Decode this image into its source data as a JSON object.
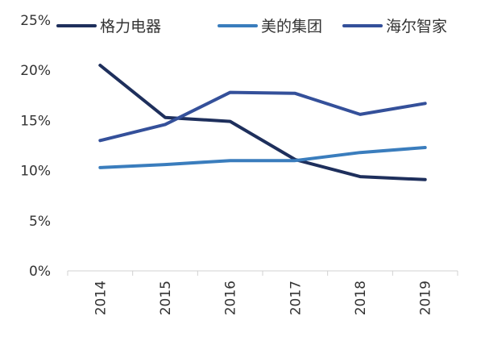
{
  "chart_data": {
    "type": "line",
    "categories": [
      "2014",
      "2015",
      "2016",
      "2017",
      "2018",
      "2019"
    ],
    "ylim": [
      0,
      25
    ],
    "yticks": [
      "0%",
      "5%",
      "10%",
      "15%",
      "20%",
      "25%"
    ],
    "ytick_values": [
      0,
      5,
      10,
      15,
      20,
      25
    ],
    "grid": false,
    "legend_position": "top",
    "series": [
      {
        "name": "格力电器",
        "color": "#1e2f5c",
        "values": [
          20.5,
          15.3,
          14.9,
          11.1,
          9.4,
          9.1
        ]
      },
      {
        "name": "美的集团",
        "color": "#3a7dbd",
        "values": [
          10.3,
          10.6,
          11.0,
          11.0,
          11.8,
          12.3
        ]
      },
      {
        "name": "海尔智家",
        "color": "#34509a",
        "values": [
          13.0,
          14.6,
          17.8,
          17.7,
          15.6,
          16.7
        ]
      }
    ]
  }
}
